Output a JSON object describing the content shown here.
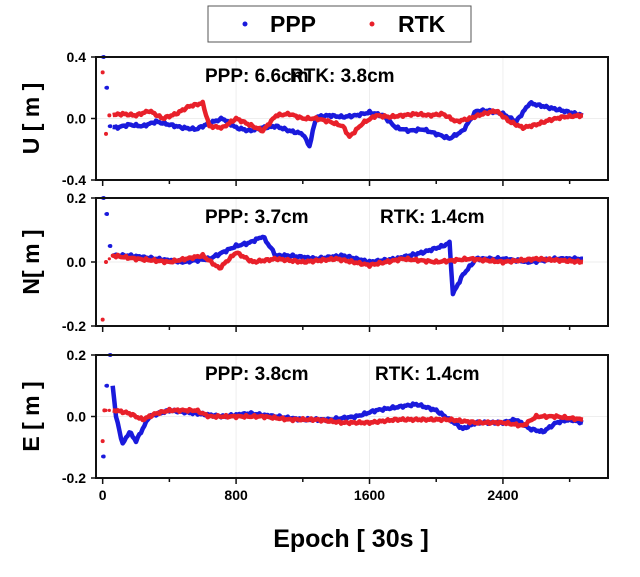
{
  "legend": {
    "entries": [
      {
        "name": "PPP",
        "color": "#1a1adc"
      },
      {
        "name": "RTK",
        "color": "#e8202a"
      }
    ],
    "placement": "top-center"
  },
  "chart_data": [
    {
      "type": "scatter",
      "ylabel": "U [ m ]",
      "xlabel": "",
      "annotation": [
        "PPP: 6.6cm",
        "RTK: 3.8cm"
      ],
      "ylim": [
        -0.4,
        0.4
      ],
      "yticks": [
        "0.4",
        "0.0",
        "-0.4"
      ],
      "xlim": [
        -40,
        3030
      ],
      "xticks": [],
      "grid": true,
      "series": [
        {
          "name": "PPP",
          "color": "#1a1adc",
          "x": [
            0,
            20,
            40,
            80,
            160,
            240,
            320,
            400,
            480,
            560,
            640,
            720,
            800,
            880,
            960,
            1040,
            1120,
            1200,
            1240,
            1280,
            1360,
            1440,
            1520,
            1600,
            1680,
            1760,
            1840,
            1920,
            2000,
            2080,
            2160,
            2240,
            2320,
            2400,
            2480,
            2560,
            2640,
            2720,
            2800,
            2880
          ],
          "y": [
            0.4,
            0.2,
            -0.05,
            -0.06,
            -0.04,
            -0.05,
            -0.02,
            -0.04,
            -0.06,
            -0.07,
            -0.03,
            0,
            -0.06,
            -0.08,
            -0.06,
            -0.05,
            -0.08,
            -0.1,
            -0.18,
            0.01,
            0.02,
            0.01,
            0.02,
            0.04,
            0.02,
            -0.06,
            -0.08,
            -0.07,
            -0.1,
            -0.13,
            -0.08,
            0.05,
            0.05,
            0.03,
            -0.02,
            0.1,
            0.08,
            0.06,
            0.04,
            0.02
          ]
        },
        {
          "name": "RTK",
          "color": "#e8202a",
          "x": [
            0,
            20,
            40,
            120,
            200,
            280,
            360,
            440,
            520,
            600,
            640,
            720,
            800,
            880,
            960,
            1040,
            1120,
            1200,
            1280,
            1360,
            1440,
            1480,
            1560,
            1640,
            1720,
            1800,
            1880,
            1960,
            2040,
            2120,
            2200,
            2280,
            2360,
            2440,
            2520,
            2600,
            2680,
            2760,
            2880
          ],
          "y": [
            0.3,
            -0.1,
            0.02,
            0.03,
            0.02,
            0.05,
            0.0,
            0.03,
            0.08,
            0.1,
            -0.05,
            -0.06,
            0,
            -0.04,
            -0.08,
            0.02,
            0.03,
            0.0,
            0.0,
            -0.02,
            -0.05,
            -0.12,
            -0.03,
            0.02,
            0.01,
            0.02,
            0.03,
            0.02,
            0.03,
            -0.02,
            0.0,
            0.03,
            0.05,
            -0.02,
            -0.06,
            -0.04,
            -0.01,
            0.01,
            0.02
          ]
        }
      ]
    },
    {
      "type": "scatter",
      "ylabel": "N[ m ]",
      "xlabel": "",
      "annotation": [
        "PPP: 3.7cm",
        "RTK: 1.4cm"
      ],
      "ylim": [
        -0.2,
        0.2
      ],
      "yticks": [
        "0.2",
        "0.0",
        "-0.2"
      ],
      "xlim": [
        -40,
        3030
      ],
      "xticks": [],
      "grid": true,
      "series": [
        {
          "name": "PPP",
          "color": "#1a1adc",
          "x": [
            0,
            20,
            40,
            60,
            160,
            320,
            480,
            640,
            720,
            800,
            880,
            960,
            1040,
            1120,
            1280,
            1440,
            1600,
            1760,
            1920,
            2040,
            2080,
            2100,
            2160,
            2240,
            2400,
            2560,
            2720,
            2880
          ],
          "y": [
            0.2,
            0.15,
            0.05,
            0.02,
            0.02,
            0.01,
            0.0,
            0.01,
            0.03,
            0.05,
            0.06,
            0.08,
            0.02,
            0.02,
            0.01,
            0.02,
            0.0,
            0.01,
            0.03,
            0.05,
            0.06,
            -0.1,
            -0.04,
            0.01,
            0.01,
            0.0,
            0.01,
            0.01
          ]
        },
        {
          "name": "RTK",
          "color": "#e8202a",
          "x": [
            0,
            20,
            60,
            200,
            400,
            600,
            700,
            800,
            900,
            1040,
            1200,
            1400,
            1600,
            1800,
            2000,
            2200,
            2400,
            2600,
            2880
          ],
          "y": [
            -0.18,
            0.0,
            0.02,
            0.01,
            0.0,
            0.02,
            -0.02,
            0.03,
            0.0,
            0.01,
            0.0,
            0.01,
            -0.01,
            0.01,
            0.0,
            0.01,
            0.0,
            0.01,
            0.0
          ]
        }
      ]
    },
    {
      "type": "scatter",
      "ylabel": "E [ m ]",
      "xlabel": "Epoch [ 30s ]",
      "annotation": [
        "PPP: 3.8cm",
        "RTK: 1.4cm"
      ],
      "ylim": [
        -0.2,
        0.2
      ],
      "yticks": [
        "0.2",
        "0.0",
        "-0.2"
      ],
      "xlim": [
        -40,
        3030
      ],
      "xticks": [
        "0",
        "800",
        "1600",
        "2400"
      ],
      "grid": true,
      "series": [
        {
          "name": "PPP",
          "color": "#1a1adc",
          "x": [
            0,
            20,
            40,
            80,
            120,
            160,
            200,
            280,
            400,
            560,
            720,
            880,
            1040,
            1200,
            1360,
            1520,
            1640,
            1760,
            1880,
            2000,
            2080,
            2160,
            2240,
            2400,
            2480,
            2560,
            2640,
            2720,
            2800,
            2880
          ],
          "y": [
            -0.13,
            0.1,
            0.2,
            0.0,
            -0.09,
            -0.05,
            -0.08,
            0.0,
            0.02,
            0.01,
            0.0,
            0.01,
            0.0,
            -0.01,
            -0.01,
            0.0,
            0.02,
            0.03,
            0.04,
            0.02,
            -0.01,
            -0.04,
            -0.02,
            -0.02,
            -0.01,
            -0.04,
            -0.05,
            -0.02,
            -0.01,
            -0.02
          ]
        },
        {
          "name": "RTK",
          "color": "#e8202a",
          "x": [
            0,
            10,
            80,
            160,
            240,
            320,
            400,
            560,
            640,
            800,
            960,
            1120,
            1280,
            1440,
            1600,
            1760,
            1920,
            2080,
            2240,
            2400,
            2520,
            2600,
            2720,
            2880
          ],
          "y": [
            -0.08,
            0.02,
            0.02,
            0.01,
            -0.01,
            0.01,
            0.02,
            0.02,
            0.0,
            0.0,
            0.0,
            -0.01,
            -0.01,
            -0.02,
            -0.02,
            -0.01,
            -0.01,
            -0.01,
            -0.02,
            -0.02,
            -0.03,
            0.0,
            0.0,
            -0.01
          ]
        }
      ]
    }
  ]
}
